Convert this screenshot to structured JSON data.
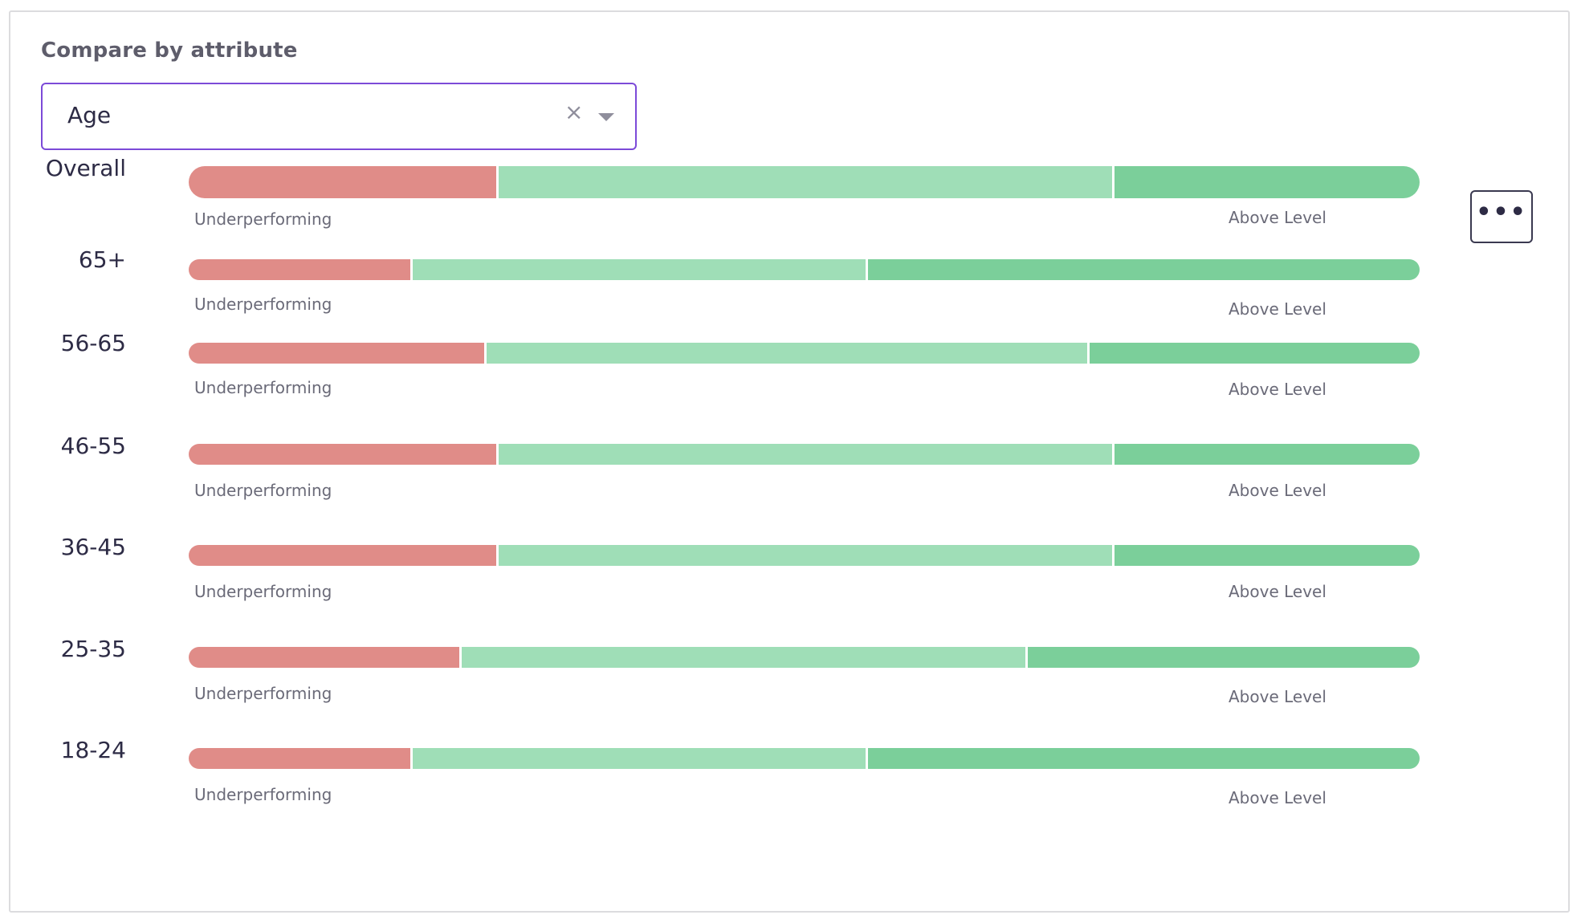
{
  "header": {
    "title": "Compare by attribute"
  },
  "select": {
    "value": "Age",
    "clear_symbol": "×"
  },
  "more_button": {
    "icon": "•••"
  },
  "colors": {
    "accent": "#7c4ad8",
    "underperforming": "#e08c88",
    "at_level": "#9fdeb7",
    "above_level": "#7bcf9a"
  },
  "legend": {
    "under": "Underperforming",
    "above": "Above Level"
  },
  "rows": [
    {
      "label": "Overall",
      "under": 0.25,
      "mid": 0.5,
      "above": 0.25
    },
    {
      "label": "65+",
      "under": 0.18,
      "mid": 0.37,
      "above": 0.45
    },
    {
      "label": "56-65",
      "under": 0.24,
      "mid": 0.49,
      "above": 0.27
    },
    {
      "label": "46-55",
      "under": 0.25,
      "mid": 0.5,
      "above": 0.25
    },
    {
      "label": "36-45",
      "under": 0.25,
      "mid": 0.5,
      "above": 0.25
    },
    {
      "label": "25-35",
      "under": 0.22,
      "mid": 0.46,
      "above": 0.32
    },
    {
      "label": "18-24",
      "under": 0.18,
      "mid": 0.37,
      "above": 0.45
    }
  ]
}
